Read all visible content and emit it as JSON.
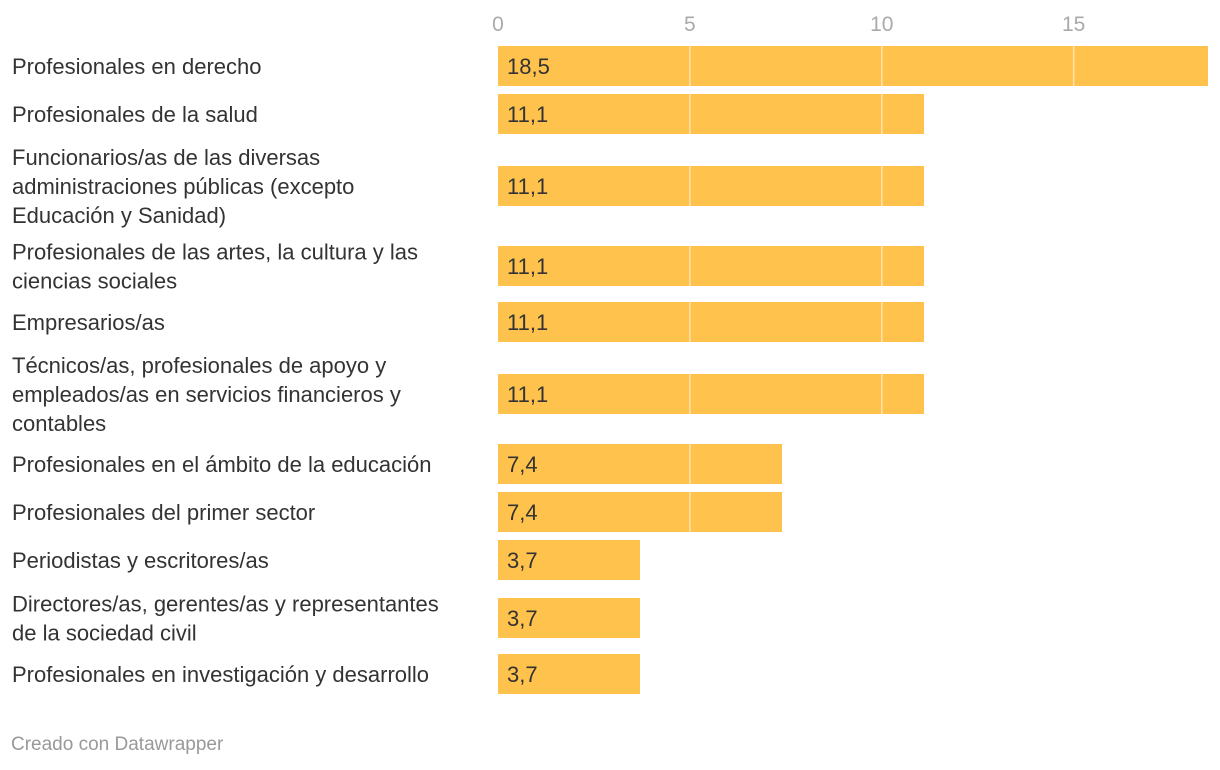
{
  "chart_data": {
    "type": "bar",
    "orientation": "horizontal",
    "title": "",
    "xlabel": "",
    "ylabel": "",
    "xlim": [
      0,
      18.5
    ],
    "ticks": [
      0,
      5,
      10,
      15
    ],
    "tick_labels": [
      "0",
      "5",
      "10",
      "15"
    ],
    "grid": true,
    "bar_color": "#ffc24d",
    "grid_color": "#ffe3a8",
    "categories": [
      "Profesionales en derecho",
      "Profesionales de la salud",
      "Funcionarios/as de las diversas administraciones públicas (excepto Educación y Sanidad)",
      "Profesionales de las artes, la cultura y las ciencias sociales",
      "Empresarios/as",
      "Técnicos/as, profesionales de apoyo y empleados/as en servicios financieros y contables",
      "Profesionales en el ámbito de la educación",
      "Profesionales del primer sector",
      "Periodistas y escritores/as",
      "Directores/as, gerentes/as y representantes de la sociedad civil",
      "Profesionales en investigación y desarrollo"
    ],
    "category_lines": [
      [
        "Profesionales en derecho"
      ],
      [
        "Profesionales de la salud"
      ],
      [
        "Funcionarios/as de las diversas",
        "administraciones públicas (excepto",
        "Educación y Sanidad)"
      ],
      [
        "Profesionales de las artes, la cultura y las",
        "ciencias sociales"
      ],
      [
        "Empresarios/as"
      ],
      [
        "Técnicos/as, profesionales de apoyo y",
        "empleados/as en servicios financieros y",
        "contables"
      ],
      [
        "Profesionales en el ámbito de la educación"
      ],
      [
        "Profesionales del primer sector"
      ],
      [
        "Periodistas y escritores/as"
      ],
      [
        "Directores/as, gerentes/as y representantes",
        "de la sociedad civil"
      ],
      [
        "Profesionales en investigación y desarrollo"
      ]
    ],
    "values": [
      18.5,
      11.1,
      11.1,
      11.1,
      11.1,
      11.1,
      7.4,
      7.4,
      3.7,
      3.7,
      3.7
    ],
    "value_labels": [
      "18,5",
      "11,1",
      "11,1",
      "11,1",
      "11,1",
      "11,1",
      "7,4",
      "7,4",
      "3,7",
      "3,7",
      "3,7"
    ]
  },
  "footer": {
    "credit": "Creado con Datawrapper"
  }
}
